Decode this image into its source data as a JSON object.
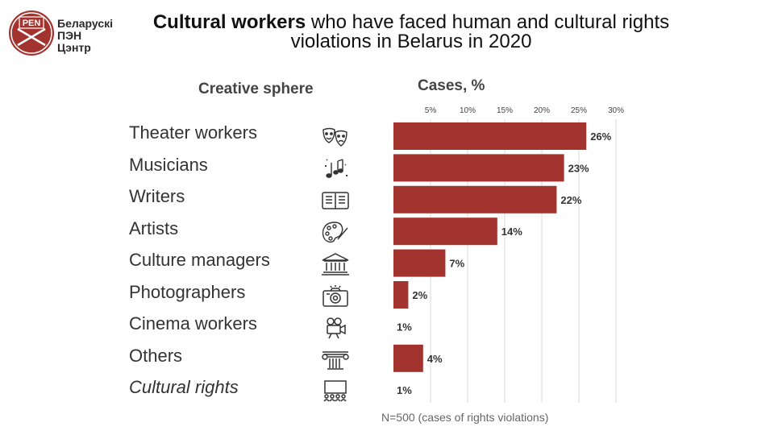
{
  "header": {
    "logo_line1": "Беларускі",
    "logo_line2": "ПЭН",
    "logo_line3": "Цэнтр",
    "logo_badge": "PEN",
    "title_bold": "Cultural workers",
    "title_rest": " who have faced human and cultural rights",
    "title_line2": "violations in Belarus in 2020"
  },
  "column_headers": {
    "sphere": "Creative sphere",
    "cases": "Cases, %"
  },
  "categories": [
    {
      "label": "Theater workers",
      "icon": "theater-masks-icon",
      "italic": false
    },
    {
      "label": "Musicians",
      "icon": "music-notes-icon",
      "italic": false
    },
    {
      "label": "Writers",
      "icon": "open-book-icon",
      "italic": false
    },
    {
      "label": "Artists",
      "icon": "palette-icon",
      "italic": false
    },
    {
      "label": "Culture managers",
      "icon": "museum-building-icon",
      "italic": false
    },
    {
      "label": "Photographers",
      "icon": "camera-icon",
      "italic": false
    },
    {
      "label": "Cinema workers",
      "icon": "film-camera-icon",
      "italic": false
    },
    {
      "label": "Others",
      "icon": "column-capital-icon",
      "italic": false
    },
    {
      "label": "Cultural rights",
      "icon": "audience-screen-icon",
      "italic": true
    }
  ],
  "chart_data": {
    "type": "bar",
    "orientation": "horizontal",
    "categories": [
      "Theater workers",
      "Musicians",
      "Writers",
      "Artists",
      "Culture managers",
      "Photographers",
      "Cinema workers",
      "Others",
      "Cultural rights"
    ],
    "values": [
      26,
      23,
      22,
      14,
      7,
      2,
      1,
      4,
      1
    ],
    "value_labels": [
      "26%",
      "23%",
      "22%",
      "14%",
      "7%",
      "2%",
      "1%",
      "4%",
      "1%"
    ],
    "bars_drawn": [
      true,
      true,
      true,
      true,
      true,
      true,
      false,
      true,
      false
    ],
    "xlim": [
      0,
      30
    ],
    "xticks": [
      5,
      10,
      15,
      20,
      25,
      30
    ],
    "xtick_labels": [
      "5%",
      "10%",
      "15%",
      "20%",
      "25%",
      "30%"
    ],
    "xlabel": "Cases, %",
    "ylabel": "Creative sphere",
    "grid": "vertical",
    "bar_color": "#a3332e",
    "note": "N=500 (cases of rights violations)"
  },
  "colors": {
    "accent": "#a3332e",
    "grid": "#d9d9d9"
  }
}
